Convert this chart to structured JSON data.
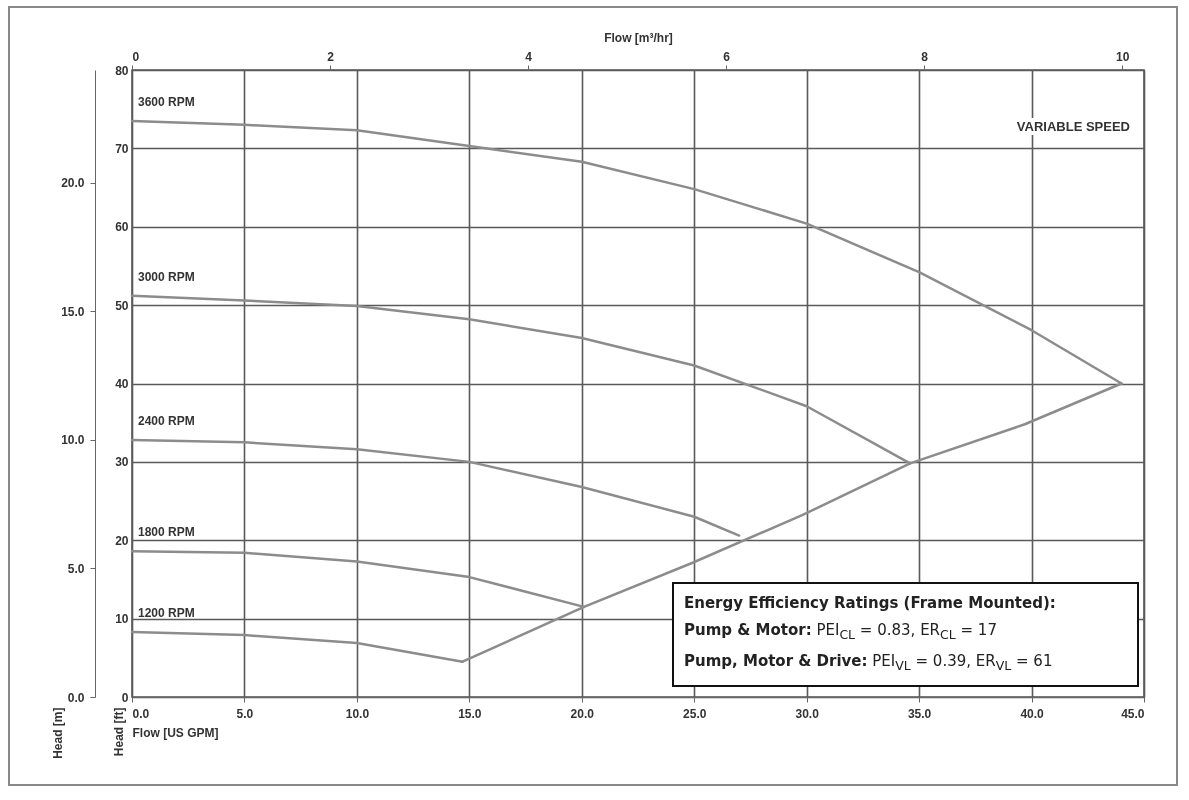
{
  "chart_data": {
    "type": "line",
    "xlabel": "Flow [US GPM]",
    "x2label": "Flow [m³/hr]",
    "ylabel": "Head [ft]",
    "y2label": "Head [m]",
    "xlim": [
      0,
      45
    ],
    "xticks": [
      {
        "value": 0,
        "label": "0.0"
      },
      {
        "value": 5,
        "label": "5.0"
      },
      {
        "value": 10,
        "label": "10.0"
      },
      {
        "value": 15,
        "label": "15.0"
      },
      {
        "value": 20,
        "label": "20.0"
      },
      {
        "value": 25,
        "label": "25.0"
      },
      {
        "value": 30,
        "label": "30.0"
      },
      {
        "value": 35,
        "label": "35.0"
      },
      {
        "value": 40,
        "label": "40.0"
      },
      {
        "value": 45,
        "label": "45.0"
      }
    ],
    "x2lim": [
      0,
      10.22
    ],
    "x2ticks": [
      0,
      2,
      4,
      6,
      8,
      10
    ],
    "ylim": [
      0,
      80
    ],
    "yticks": [
      0,
      10,
      20,
      30,
      40,
      50,
      60,
      70,
      80
    ],
    "y2lim": [
      0,
      24.38
    ],
    "y2ticks": [
      {
        "value": 0,
        "label": "0.0"
      },
      {
        "value": 5,
        "label": "5.0"
      },
      {
        "value": 10,
        "label": "10.0"
      },
      {
        "value": 15,
        "label": "15.0"
      },
      {
        "value": 20,
        "label": "20.0"
      }
    ],
    "grid": true,
    "legend": false,
    "series": [
      {
        "name": "3600 RPM",
        "color": "#8c8c8c",
        "x": [
          0,
          5,
          10,
          15,
          20,
          25,
          30,
          35,
          40,
          44
        ],
        "values": [
          73.5,
          73.0,
          72.3,
          70.3,
          68.3,
          64.8,
          60.4,
          54.2,
          46.8,
          40
        ]
      },
      {
        "name": "3000 RPM",
        "color": "#8c8c8c",
        "x": [
          0,
          5,
          10,
          15,
          20,
          25,
          30,
          34.6
        ],
        "values": [
          51.2,
          50.6,
          49.9,
          48.2,
          45.8,
          42.3,
          37.1,
          29.8
        ]
      },
      {
        "name": "2400 RPM",
        "color": "#8c8c8c",
        "x": [
          0,
          5,
          10,
          15,
          20,
          25,
          27.0
        ],
        "values": [
          32.8,
          32.5,
          31.6,
          30.0,
          26.8,
          23.0,
          20.6
        ]
      },
      {
        "name": "1800 RPM",
        "color": "#8c8c8c",
        "x": [
          0,
          5,
          10,
          15,
          20.1
        ],
        "values": [
          18.6,
          18.4,
          17.3,
          15.3,
          11.5
        ]
      },
      {
        "name": "1200 RPM",
        "color": "#8c8c8c",
        "x": [
          0,
          5,
          10,
          14.7
        ],
        "values": [
          8.3,
          7.9,
          6.9,
          4.5
        ]
      },
      {
        "color": "#8c8c8c",
        "x": [
          14.7,
          20.1,
          24.9,
          29.8,
          34.6,
          39.7,
          44
        ],
        "values": [
          4.5,
          11.5,
          17.1,
          23.2,
          29.8,
          34.8,
          40
        ]
      }
    ],
    "annotations": [
      "VARIABLE SPEED",
      "Energy Efficiency Ratings (Frame Mounted):",
      "Pump & Motor: PEI$_{CL}$ = 0.83, ER$_{CL}$ = 17",
      "Pump, Motor & Drive: PEI$_{VL}$ = 0.39, ER$_{VL}$ = 61"
    ]
  }
}
